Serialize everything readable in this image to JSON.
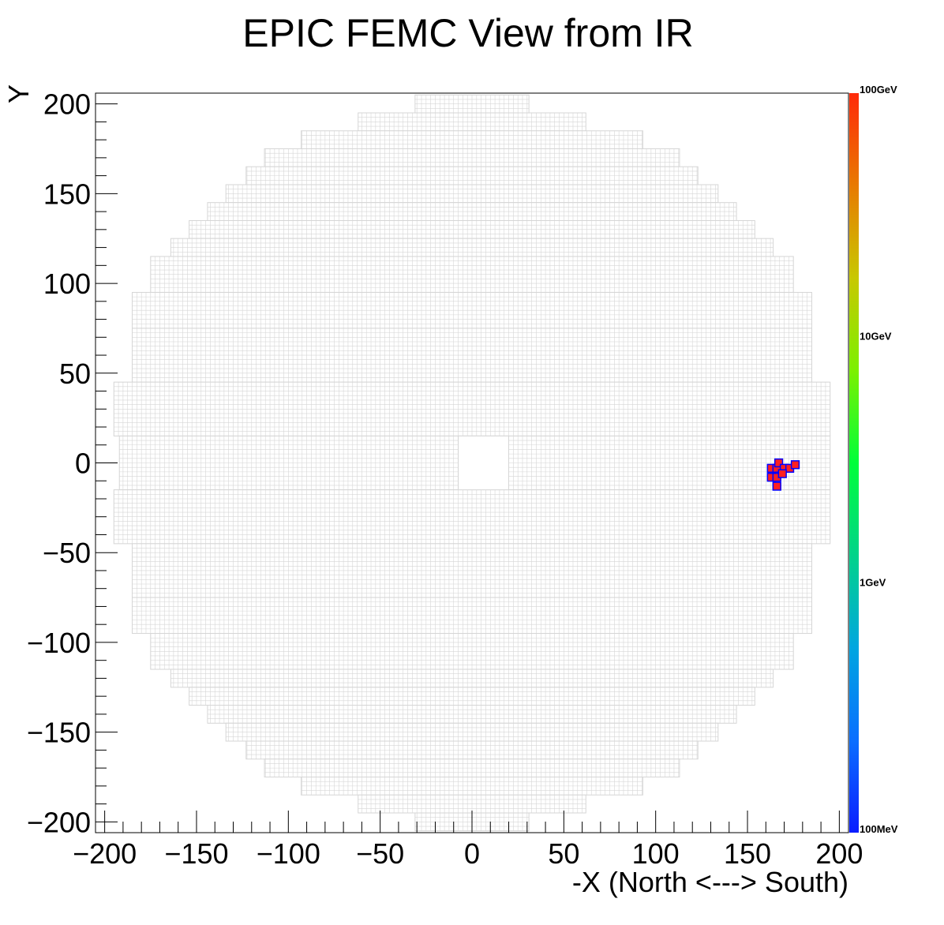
{
  "chart_data": {
    "type": "heatmap",
    "title": "EPIC FEMC View from IR",
    "xlabel": "-X (North <---> South)",
    "ylabel": "Y",
    "xlim": [
      -205,
      205
    ],
    "ylim": [
      -206,
      206
    ],
    "xticks": [
      -200,
      -150,
      -100,
      -50,
      0,
      50,
      100,
      150,
      200
    ],
    "yticks": [
      -200,
      -150,
      -100,
      -50,
      0,
      50,
      100,
      150,
      200
    ],
    "xtick_labels": [
      "−200",
      "−150",
      "−100",
      "−50",
      "0",
      "50",
      "100",
      "150",
      "200"
    ],
    "ytick_labels": [
      "−200",
      "−150",
      "−100",
      "−50",
      "0",
      "50",
      "100",
      "150",
      "200"
    ],
    "z_scale": "log",
    "z_range_gev": [
      0.1,
      100
    ],
    "palette_labels": [
      {
        "text": "100GeV",
        "value": 100
      },
      {
        "text": "10GeV",
        "value": 10
      },
      {
        "text": "1GeV",
        "value": 1
      },
      {
        "text": "100MeV",
        "value": 0.1
      }
    ],
    "palette_colors": [
      "#0a1dff",
      "#0a6fff",
      "#00a6e0",
      "#00d38a",
      "#00ff3a",
      "#7cf000",
      "#c8c800",
      "#e87a00",
      "#ff2a0a"
    ],
    "grid_color": "#d6d6d6",
    "detector_rows": [
      {
        "y": [
          195,
          205
        ],
        "x": [
          -31,
          31
        ]
      },
      {
        "y": [
          185,
          195
        ],
        "x": [
          -62,
          62
        ]
      },
      {
        "y": [
          175,
          185
        ],
        "x": [
          -93,
          93
        ]
      },
      {
        "y": [
          165,
          175
        ],
        "x": [
          -113,
          113
        ]
      },
      {
        "y": [
          155,
          165
        ],
        "x": [
          -123,
          123
        ]
      },
      {
        "y": [
          145,
          155
        ],
        "x": [
          -134,
          134
        ]
      },
      {
        "y": [
          135,
          145
        ],
        "x": [
          -144,
          144
        ]
      },
      {
        "y": [
          125,
          135
        ],
        "x": [
          -154,
          154
        ]
      },
      {
        "y": [
          115,
          125
        ],
        "x": [
          -164,
          164
        ]
      },
      {
        "y": [
          95,
          115
        ],
        "x": [
          -175,
          175
        ]
      },
      {
        "y": [
          75,
          95
        ],
        "x": [
          -185,
          185
        ]
      },
      {
        "y": [
          45,
          75
        ],
        "x": [
          -185,
          185
        ]
      },
      {
        "y": [
          15,
          45
        ],
        "x": [
          -195,
          195
        ]
      },
      {
        "y": [
          -15,
          15
        ],
        "x": [
          -192,
          195
        ]
      },
      {
        "y": [
          -45,
          -15
        ],
        "x": [
          -195,
          195
        ]
      },
      {
        "y": [
          -75,
          -45
        ],
        "x": [
          -185,
          185
        ]
      },
      {
        "y": [
          -95,
          -75
        ],
        "x": [
          -185,
          185
        ]
      },
      {
        "y": [
          -115,
          -95
        ],
        "x": [
          -175,
          175
        ]
      },
      {
        "y": [
          -125,
          -115
        ],
        "x": [
          -164,
          164
        ]
      },
      {
        "y": [
          -135,
          -125
        ],
        "x": [
          -154,
          154
        ]
      },
      {
        "y": [
          -145,
          -135
        ],
        "x": [
          -144,
          144
        ]
      },
      {
        "y": [
          -155,
          -145
        ],
        "x": [
          -134,
          134
        ]
      },
      {
        "y": [
          -165,
          -155
        ],
        "x": [
          -123,
          123
        ]
      },
      {
        "y": [
          -175,
          -165
        ],
        "x": [
          -113,
          113
        ]
      },
      {
        "y": [
          -185,
          -175
        ],
        "x": [
          -93,
          93
        ]
      },
      {
        "y": [
          -195,
          -185
        ],
        "x": [
          -62,
          62
        ]
      },
      {
        "y": [
          -205,
          -195
        ],
        "x": [
          -31,
          31
        ]
      }
    ],
    "beam_hole": {
      "x": [
        -7.5,
        20
      ],
      "y": [
        -15,
        15
      ]
    },
    "hits": [
      {
        "x": 163,
        "y": -3,
        "color": "#ff2020"
      },
      {
        "x": 166,
        "y": -3,
        "color": "#ff2020"
      },
      {
        "x": 167,
        "y": 0,
        "color": "#ff2020"
      },
      {
        "x": 170,
        "y": -3,
        "color": "#ff2020"
      },
      {
        "x": 173,
        "y": -3,
        "color": "#ff2020"
      },
      {
        "x": 176,
        "y": -1,
        "color": "#ff2020"
      },
      {
        "x": 163,
        "y": -8,
        "color": "#ff2020"
      },
      {
        "x": 166,
        "y": -8,
        "color": "#ff2020"
      },
      {
        "x": 169,
        "y": -6,
        "color": "#ff2020"
      },
      {
        "x": 166,
        "y": -13,
        "color": "#ff2020"
      }
    ]
  }
}
